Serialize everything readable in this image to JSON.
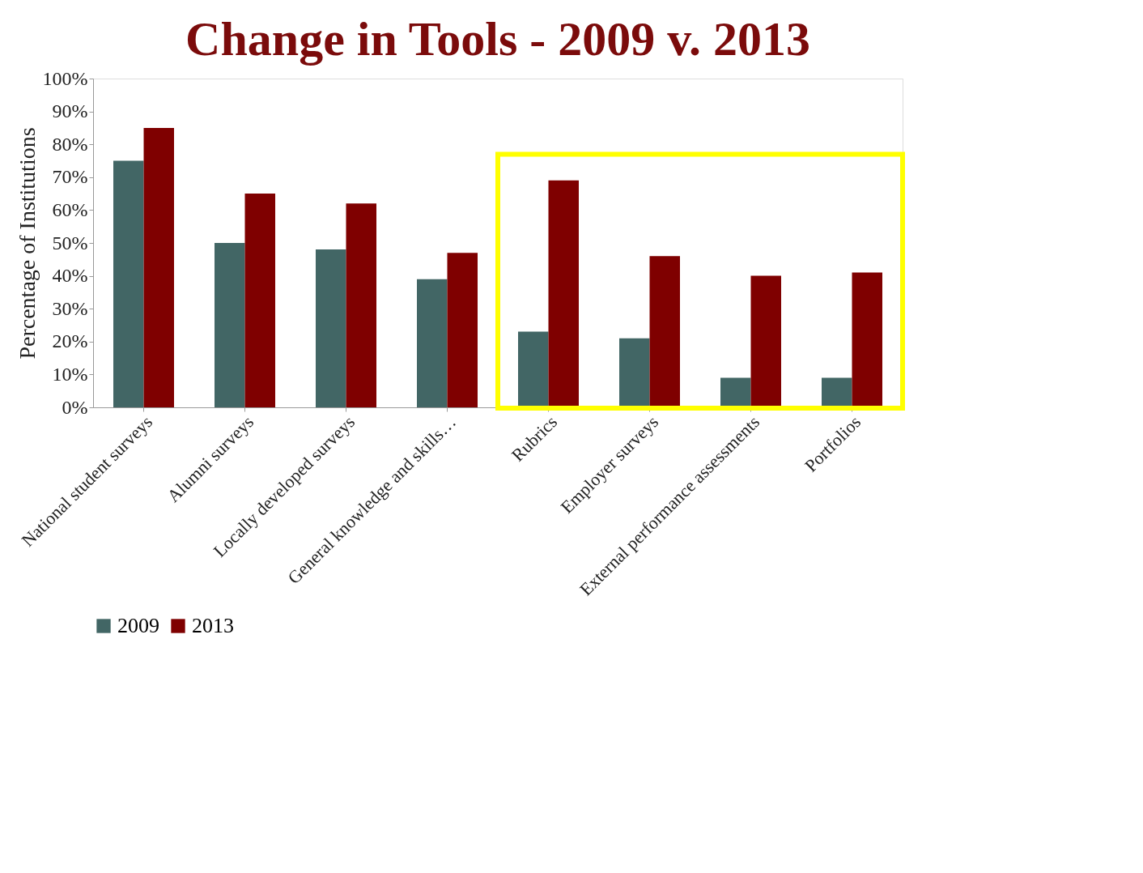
{
  "chart_data": {
    "type": "bar",
    "title": "Change in Tools - 2009 v. 2013",
    "ylabel": "Percentage of Institutions",
    "categories": [
      "National student surveys",
      "Alumni surveys",
      "Locally developed surveys",
      "General knowledge and skills…",
      "Rubrics",
      "Employer surveys",
      "External performance assessments",
      "Portfolios"
    ],
    "series": [
      {
        "name": "2009",
        "color": "#426665",
        "values": [
          75,
          50,
          48,
          39,
          23,
          21,
          9,
          9
        ]
      },
      {
        "name": "2013",
        "color": "#7f0000",
        "values": [
          85,
          65,
          62,
          47,
          69,
          46,
          40,
          41
        ]
      }
    ],
    "ylim": [
      0,
      100
    ],
    "yticks": [
      {
        "value": 0,
        "label": "0%"
      },
      {
        "value": 10,
        "label": "10%"
      },
      {
        "value": 20,
        "label": "20%"
      },
      {
        "value": 30,
        "label": "30%"
      },
      {
        "value": 40,
        "label": "40%"
      },
      {
        "value": 50,
        "label": "50%"
      },
      {
        "value": 60,
        "label": "60%"
      },
      {
        "value": 70,
        "label": "70%"
      },
      {
        "value": 80,
        "label": "80%"
      },
      {
        "value": 90,
        "label": "90%"
      },
      {
        "value": 100,
        "label": "100%"
      }
    ],
    "grid": false,
    "legend": "bottom"
  }
}
